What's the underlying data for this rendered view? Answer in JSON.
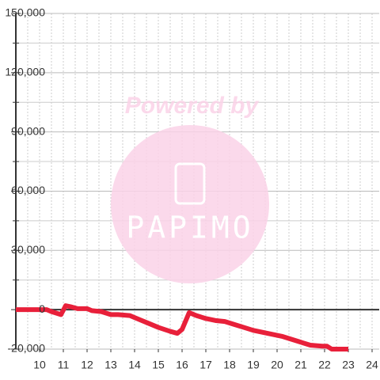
{
  "chart_data": {
    "type": "line",
    "watermark": {
      "line1": "Powered by",
      "logo": "PAPIMO"
    },
    "x": [
      9,
      10,
      10.3,
      10.5,
      10.9,
      11.1,
      11.3,
      11.6,
      12,
      12.2,
      12.6,
      13,
      13.3,
      13.8,
      14.2,
      14.6,
      15,
      15.5,
      15.8,
      16,
      16.3,
      16.6,
      17,
      17.4,
      17.8,
      18.2,
      18.6,
      19,
      19.4,
      19.8,
      20.2,
      20.6,
      21,
      21.4,
      21.9,
      22.1,
      22.3,
      23
    ],
    "series": [
      {
        "color": "#e8203a",
        "values": [
          0,
          0,
          0,
          -1000,
          -2500,
          2000,
          1500,
          500,
          500,
          -500,
          -1000,
          -2500,
          -2500,
          -3000,
          -5000,
          -7000,
          -9000,
          -11000,
          -12000,
          -10000,
          -1500,
          -3000,
          -4500,
          -5500,
          -6000,
          -7500,
          -9000,
          -10500,
          -11500,
          -12500,
          -13500,
          -15000,
          -16500,
          -18000,
          -18500,
          -18500,
          -20000,
          -20000
        ]
      }
    ],
    "xlim": [
      9,
      24.3
    ],
    "ylim": [
      -20000,
      150000
    ],
    "xticks": [
      10,
      11,
      12,
      13,
      14,
      15,
      16,
      17,
      18,
      19,
      20,
      21,
      22,
      23,
      24
    ],
    "yticks": [
      {
        "value": -20000,
        "label": "-20,000"
      },
      0,
      {
        "value": 30000,
        "label": "30,000"
      },
      {
        "value": 60000,
        "label": "60,000"
      },
      {
        "value": 90000,
        "label": "90,000"
      },
      {
        "value": 120000,
        "label": "120,000"
      },
      {
        "value": 150000,
        "label": "150,000"
      }
    ],
    "y_minor_grid": [
      15000,
      45000,
      75000,
      105000,
      135000
    ],
    "x_minor_grid": [
      9.5,
      10.5,
      11.5,
      12.5,
      13.5,
      14.5,
      15.5,
      16.5,
      17.5,
      18.5,
      19.5,
      20.5,
      21.5,
      22.5,
      23.5
    ],
    "grid": true
  }
}
